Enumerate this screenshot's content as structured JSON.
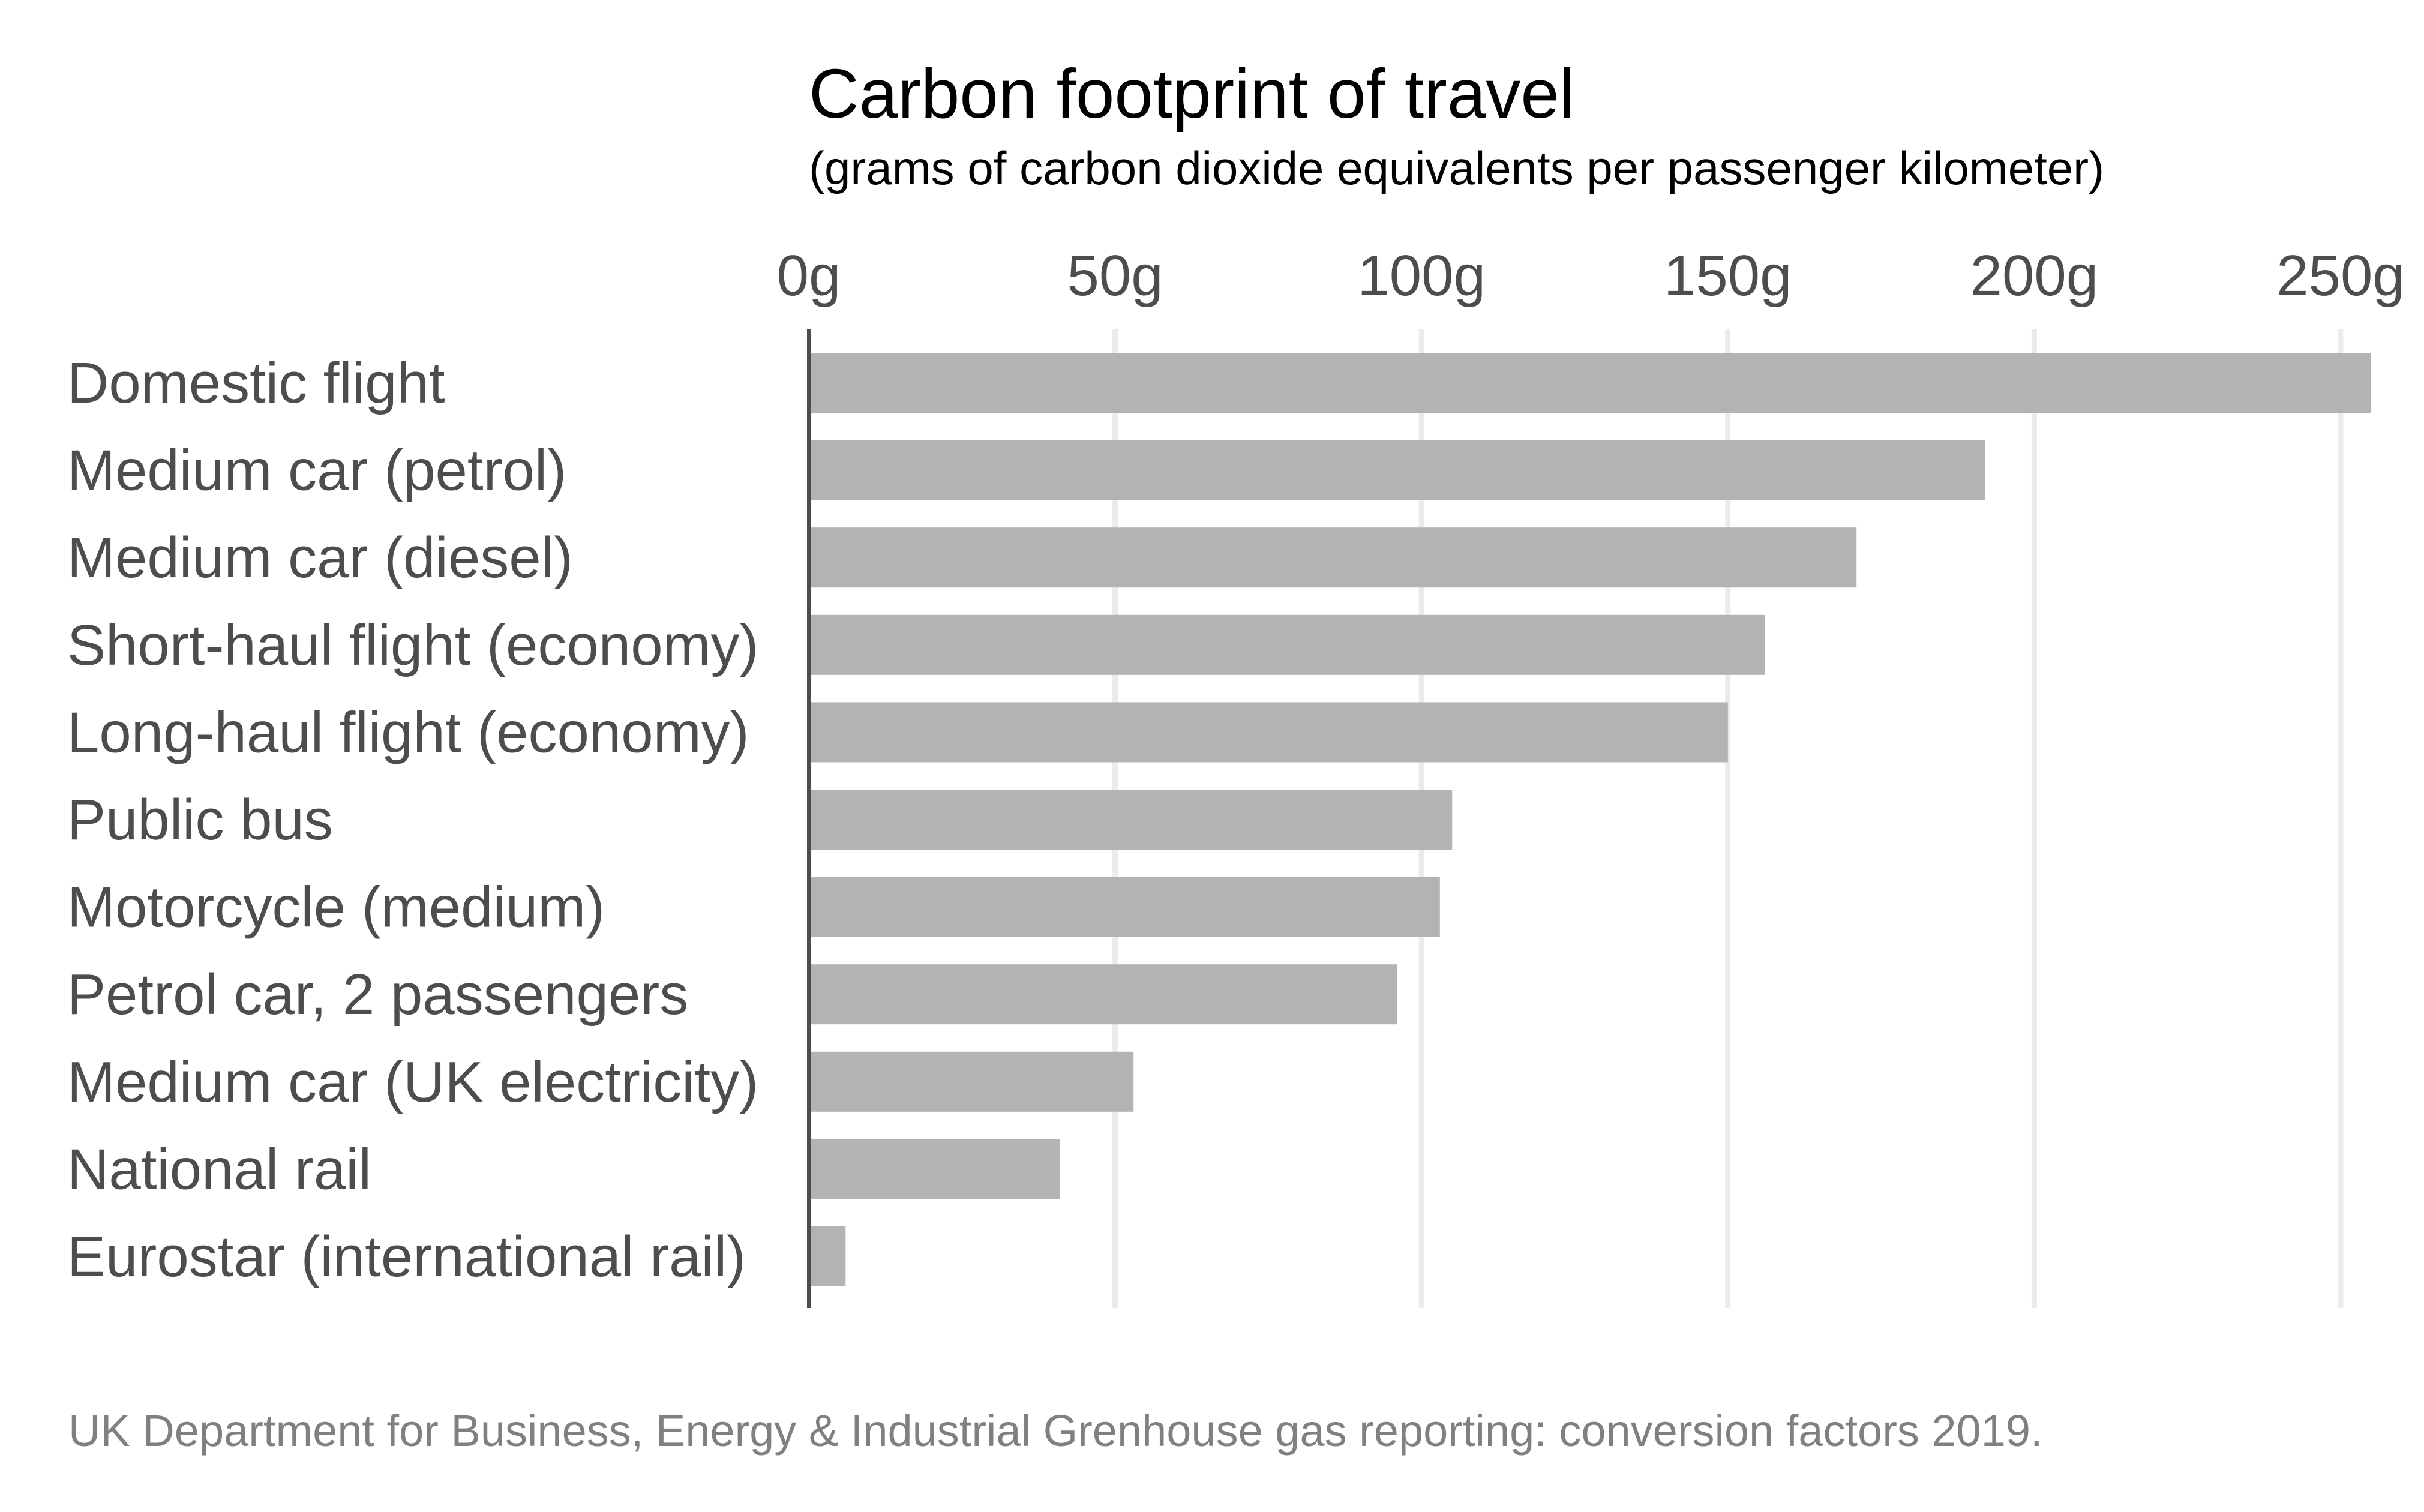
{
  "chart_data": {
    "type": "bar",
    "orientation": "horizontal",
    "title": "Carbon footprint of travel",
    "subtitle": "(grams of carbon dioxide equivalents per passenger kilometer)",
    "caption": "UK Department for Business, Energy & Industrial Grenhouse gas reporting: conversion factors 2019.",
    "categories": [
      "Domestic flight",
      "Medium car (petrol)",
      "Medium car (diesel)",
      "Short-haul flight (economy)",
      "Long-haul flight (economy)",
      "Public bus",
      "Motorcycle (medium)",
      "Petrol car, 2 passengers",
      "Medium car (UK electricity)",
      "National rail",
      "Eurostar (international rail)"
    ],
    "values": [
      255,
      192,
      171,
      156,
      150,
      105,
      103,
      96,
      53,
      41,
      6
    ],
    "unit": "g",
    "xlim": [
      0,
      255
    ],
    "xticks": [
      0,
      50,
      100,
      150,
      200,
      250
    ],
    "xtick_labels": [
      "0g",
      "50g",
      "100g",
      "150g",
      "200g",
      "250g"
    ],
    "axis_position": "top",
    "grid": "vertical",
    "bar_color": "#b3b3b3",
    "grid_color": "#ebebeb",
    "axis_color": "#4d4d4d"
  }
}
